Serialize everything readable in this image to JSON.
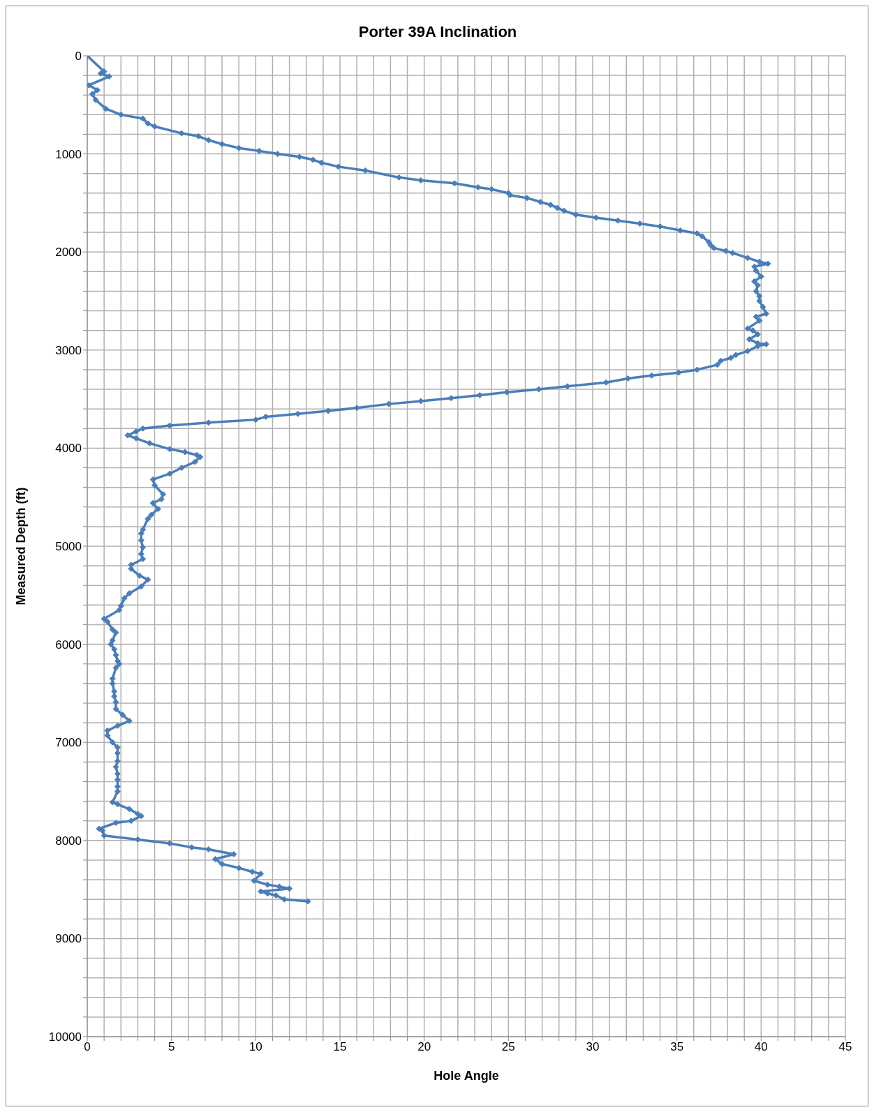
{
  "chart_data": {
    "type": "line",
    "title": "Porter 39A Inclination",
    "xlabel": "Hole Angle",
    "ylabel": "Measured Depth (ft)",
    "xlim": [
      0,
      45
    ],
    "xticks": [
      0,
      {
        "value": 1,
        "label": null
      },
      {
        "value": 2,
        "label": null
      },
      {
        "value": 3,
        "label": null
      },
      {
        "value": 4,
        "label": null
      },
      5,
      {
        "value": 6,
        "label": null
      },
      {
        "value": 7,
        "label": null
      },
      {
        "value": 8,
        "label": null
      },
      {
        "value": 9,
        "label": null
      },
      10,
      {
        "value": 11,
        "label": null
      },
      {
        "value": 12,
        "label": null
      },
      {
        "value": 13,
        "label": null
      },
      {
        "value": 14,
        "label": null
      },
      15,
      {
        "value": 16,
        "label": null
      },
      {
        "value": 17,
        "label": null
      },
      {
        "value": 18,
        "label": null
      },
      {
        "value": 19,
        "label": null
      },
      20,
      {
        "value": 21,
        "label": null
      },
      {
        "value": 22,
        "label": null
      },
      {
        "value": 23,
        "label": null
      },
      {
        "value": 24,
        "label": null
      },
      25,
      {
        "value": 26,
        "label": null
      },
      {
        "value": 27,
        "label": null
      },
      {
        "value": 28,
        "label": null
      },
      {
        "value": 29,
        "label": null
      },
      30,
      {
        "value": 31,
        "label": null
      },
      {
        "value": 32,
        "label": null
      },
      {
        "value": 33,
        "label": null
      },
      {
        "value": 34,
        "label": null
      },
      35,
      {
        "value": 36,
        "label": null
      },
      {
        "value": 37,
        "label": null
      },
      {
        "value": 38,
        "label": null
      },
      {
        "value": 39,
        "label": null
      },
      40,
      {
        "value": 41,
        "label": null
      },
      {
        "value": 42,
        "label": null
      },
      {
        "value": 43,
        "label": null
      },
      {
        "value": 44,
        "label": null
      },
      45
    ],
    "ylim": [
      10000,
      0
    ],
    "yticks": [
      0,
      {
        "value": 200,
        "label": null
      },
      {
        "value": 400,
        "label": null
      },
      {
        "value": 600,
        "label": null
      },
      {
        "value": 800,
        "label": null
      },
      1000,
      {
        "value": 1200,
        "label": null
      },
      {
        "value": 1400,
        "label": null
      },
      {
        "value": 1600,
        "label": null
      },
      {
        "value": 1800,
        "label": null
      },
      2000,
      {
        "value": 2200,
        "label": null
      },
      {
        "value": 2400,
        "label": null
      },
      {
        "value": 2600,
        "label": null
      },
      {
        "value": 2800,
        "label": null
      },
      3000,
      {
        "value": 3200,
        "label": null
      },
      {
        "value": 3400,
        "label": null
      },
      {
        "value": 3600,
        "label": null
      },
      {
        "value": 3800,
        "label": null
      },
      4000,
      {
        "value": 4200,
        "label": null
      },
      {
        "value": 4400,
        "label": null
      },
      {
        "value": 4600,
        "label": null
      },
      {
        "value": 4800,
        "label": null
      },
      5000,
      {
        "value": 5200,
        "label": null
      },
      {
        "value": 5400,
        "label": null
      },
      {
        "value": 5600,
        "label": null
      },
      {
        "value": 5800,
        "label": null
      },
      6000,
      {
        "value": 6200,
        "label": null
      },
      {
        "value": 6400,
        "label": null
      },
      {
        "value": 6600,
        "label": null
      },
      {
        "value": 6800,
        "label": null
      },
      7000,
      {
        "value": 7200,
        "label": null
      },
      {
        "value": 7400,
        "label": null
      },
      {
        "value": 7600,
        "label": null
      },
      {
        "value": 7800,
        "label": null
      },
      8000,
      {
        "value": 8200,
        "label": null
      },
      {
        "value": 8400,
        "label": null
      },
      {
        "value": 8600,
        "label": null
      },
      {
        "value": 8800,
        "label": null
      },
      9000,
      {
        "value": 9200,
        "label": null
      },
      {
        "value": 9400,
        "label": null
      },
      {
        "value": 9600,
        "label": null
      },
      {
        "value": 9800,
        "label": null
      },
      10000
    ],
    "grid": true,
    "marker": "diamond",
    "line_style": "solid",
    "series": [
      {
        "color": "#4a7ebb",
        "x": [
          0,
          1.0,
          0.8,
          1.3,
          0.1,
          0.6,
          0.3,
          0.5,
          1.1,
          2.0,
          3.3,
          3.6,
          4.0,
          5.6,
          6.6,
          7.2,
          8.0,
          9.0,
          10.2,
          11.3,
          12.6,
          13.4,
          13.9,
          14.9,
          16.5,
          18.5,
          19.8,
          21.8,
          23.2,
          24.0,
          25.0,
          25.1,
          26.1,
          26.9,
          27.5,
          27.9,
          28.3,
          29.0,
          30.2,
          31.5,
          32.8,
          34.0,
          35.2,
          36.2,
          36.5,
          36.9,
          37.0,
          37.2,
          37.9,
          38.3,
          39.2,
          39.9,
          40.4,
          39.6,
          39.7,
          40.0,
          39.6,
          39.8,
          39.7,
          39.9,
          39.9,
          40.1,
          40.3,
          39.7,
          39.9,
          39.2,
          39.5,
          39.8,
          39.3,
          39.8,
          40.3,
          39.8,
          39.2,
          38.5,
          38.2,
          37.6,
          37.4,
          36.2,
          35.1,
          33.5,
          32.1,
          30.8,
          28.5,
          26.8,
          24.9,
          23.3,
          21.6,
          19.8,
          17.9,
          16.0,
          14.3,
          12.5,
          10.6,
          10.0,
          7.2,
          4.9,
          3.3,
          2.9,
          2.4,
          2.9,
          3.7,
          4.9,
          5.8,
          6.5,
          6.7,
          6.4,
          5.6,
          4.9,
          3.9,
          4.0,
          4.5,
          4.4,
          3.9,
          4.2,
          3.8,
          3.6,
          3.3,
          3.2,
          3.2,
          3.3,
          3.2,
          3.3,
          2.6,
          2.6,
          3.1,
          3.6,
          3.2,
          2.5,
          2.2,
          2.0,
          1.9,
          1.0,
          1.2,
          1.5,
          1.7,
          1.5,
          1.4,
          1.6,
          1.7,
          1.8,
          1.9,
          1.7,
          1.5,
          1.5,
          1.6,
          1.6,
          1.7,
          1.7,
          2.1,
          2.5,
          1.8,
          1.2,
          1.2,
          1.5,
          1.8,
          1.8,
          1.8,
          1.7,
          1.8,
          1.8,
          1.8,
          1.8,
          1.5,
          1.8,
          2.5,
          3.0,
          3.2,
          2.6,
          1.7,
          0.7,
          0.9,
          1.0,
          3.0,
          4.9,
          6.2,
          7.2,
          8.7,
          7.6,
          8.0,
          9.0,
          9.8,
          10.3,
          9.9,
          10.7,
          11.4,
          12.0,
          10.3,
          10.7,
          11.2,
          11.7,
          13.1
        ],
        "values": [
          0,
          160,
          180,
          210,
          300,
          350,
          390,
          450,
          540,
          600,
          640,
          690,
          720,
          790,
          820,
          860,
          900,
          940,
          970,
          1000,
          1030,
          1060,
          1090,
          1130,
          1170,
          1240,
          1270,
          1300,
          1340,
          1360,
          1400,
          1420,
          1450,
          1490,
          1520,
          1550,
          1580,
          1620,
          1650,
          1680,
          1710,
          1740,
          1780,
          1810,
          1840,
          1900,
          1930,
          1960,
          1990,
          2010,
          2060,
          2100,
          2120,
          2150,
          2190,
          2250,
          2300,
          2340,
          2400,
          2450,
          2500,
          2560,
          2630,
          2660,
          2700,
          2780,
          2800,
          2840,
          2890,
          2930,
          2940,
          2960,
          3010,
          3050,
          3080,
          3110,
          3150,
          3200,
          3230,
          3260,
          3290,
          3330,
          3370,
          3400,
          3430,
          3460,
          3490,
          3520,
          3550,
          3590,
          3620,
          3650,
          3680,
          3710,
          3740,
          3770,
          3800,
          3830,
          3870,
          3900,
          3950,
          4010,
          4040,
          4070,
          4090,
          4140,
          4200,
          4260,
          4320,
          4380,
          4470,
          4520,
          4560,
          4620,
          4680,
          4720,
          4830,
          4870,
          4940,
          5010,
          5080,
          5130,
          5190,
          5230,
          5300,
          5340,
          5410,
          5480,
          5530,
          5610,
          5650,
          5740,
          5770,
          5850,
          5880,
          5960,
          6000,
          6050,
          6110,
          6170,
          6200,
          6240,
          6350,
          6400,
          6480,
          6530,
          6590,
          6660,
          6720,
          6780,
          6830,
          6880,
          6930,
          7000,
          7050,
          7110,
          7190,
          7250,
          7320,
          7380,
          7450,
          7500,
          7610,
          7630,
          7680,
          7730,
          7750,
          7800,
          7820,
          7880,
          7900,
          7950,
          7990,
          8030,
          8070,
          8090,
          8140,
          8190,
          8240,
          8280,
          8320,
          8340,
          8410,
          8450,
          8470,
          8490,
          8520,
          8540,
          8560,
          8600,
          8620
        ]
      }
    ]
  }
}
